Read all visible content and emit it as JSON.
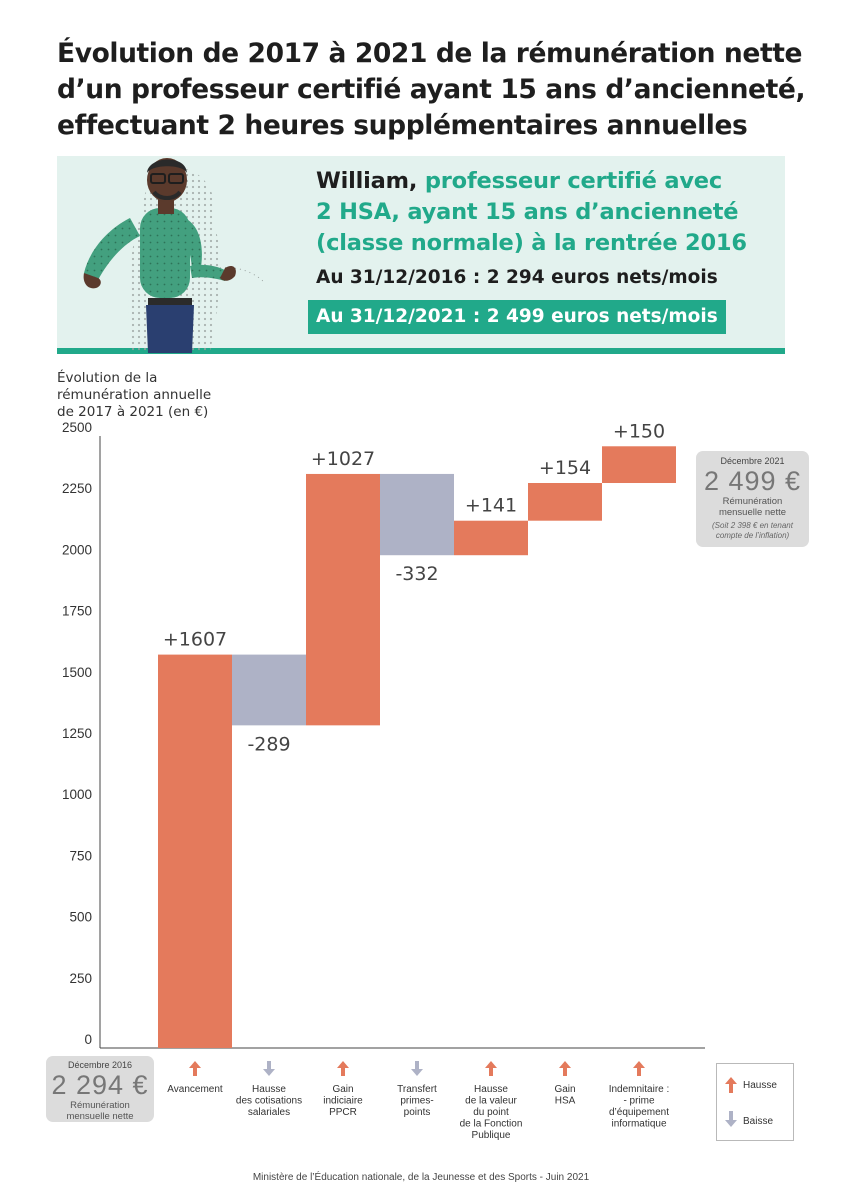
{
  "title": {
    "line1": "Évolution de 2017 à 2021 de la rémunération nette",
    "line2": "d’un professeur certifié ayant 15 ans d’ancienneté,",
    "line3": "effectuant 2 heures supplémentaires annuelles"
  },
  "banner": {
    "name": "William,",
    "desc_line1": " professeur certifié avec",
    "desc_line2": "2 HSA, ayant 15 ans d’ancienneté",
    "desc_line3": "(classe normale) à la rentrée 2016",
    "salary_2016": "Au 31/12/2016 : 2 294 euros nets/mois",
    "salary_2021": "Au 31/12/2021 : 2 499 euros nets/mois"
  },
  "colors": {
    "accent": "#21a98a",
    "banner_bg": "#e3f2ee",
    "increase": "#e47a5c",
    "decrease": "#aeb2c6",
    "axis": "#444444"
  },
  "y_axis_label": {
    "line1": "Évolution de la",
    "line2": "rémunération annuelle",
    "line3": "de 2017 à 2021 (en €)"
  },
  "chart_data": {
    "type": "bar",
    "subtype": "waterfall",
    "ylabel": "Évolution de la rémunération annuelle de 2017 à 2021 (en €)",
    "ylim": [
      0,
      2500
    ],
    "yticks": [
      0,
      250,
      500,
      750,
      1000,
      1250,
      1500,
      1750,
      2000,
      2250,
      2500
    ],
    "grid": false,
    "categories": [
      "Avancement",
      "Hausse des cotisations salariales",
      "Gain indiciaire PPCR",
      "Transfert primes-points",
      "Hausse de la valeur du point de la Fonction Publique",
      "Gain HSA",
      "Indemnitaire : - prime d’équipement informatique"
    ],
    "category_lines": [
      [
        "Avancement"
      ],
      [
        "Hausse",
        "des cotisations",
        "salariales"
      ],
      [
        "Gain",
        "indiciaire",
        "PPCR"
      ],
      [
        "Transfert",
        "primes-",
        "points"
      ],
      [
        "Hausse",
        "de la valeur",
        "du point",
        "de la Fonction",
        "Publique"
      ],
      [
        "Gain",
        "HSA"
      ],
      [
        "Indemnitaire :",
        "- prime",
        "d’équipement",
        "informatique"
      ]
    ],
    "values": [
      1607,
      -289,
      1027,
      -332,
      141,
      154,
      150
    ],
    "value_labels": [
      "+1607",
      "-289",
      "+1027",
      "-332",
      "+141",
      "+154",
      "+150"
    ],
    "start": 0,
    "directions": [
      "up",
      "down",
      "up",
      "down",
      "up",
      "up",
      "up"
    ]
  },
  "box_2021": {
    "month": "Décembre 2021",
    "amount": "2 499 €",
    "label_line1": "Rémunération",
    "label_line2": "mensuelle nette",
    "note_line1": "(Soit 2 398 € en tenant",
    "note_line2": "compte de l’inflation)"
  },
  "box_2016": {
    "month": "Décembre 2016",
    "amount": "2 294 €",
    "label_line1": "Rémunération",
    "label_line2": "mensuelle nette"
  },
  "legend": {
    "up_label": "Hausse",
    "down_label": "Baisse"
  },
  "footer": "Ministère de l’Éducation nationale, de la Jeunesse et des Sports - Juin 2021"
}
